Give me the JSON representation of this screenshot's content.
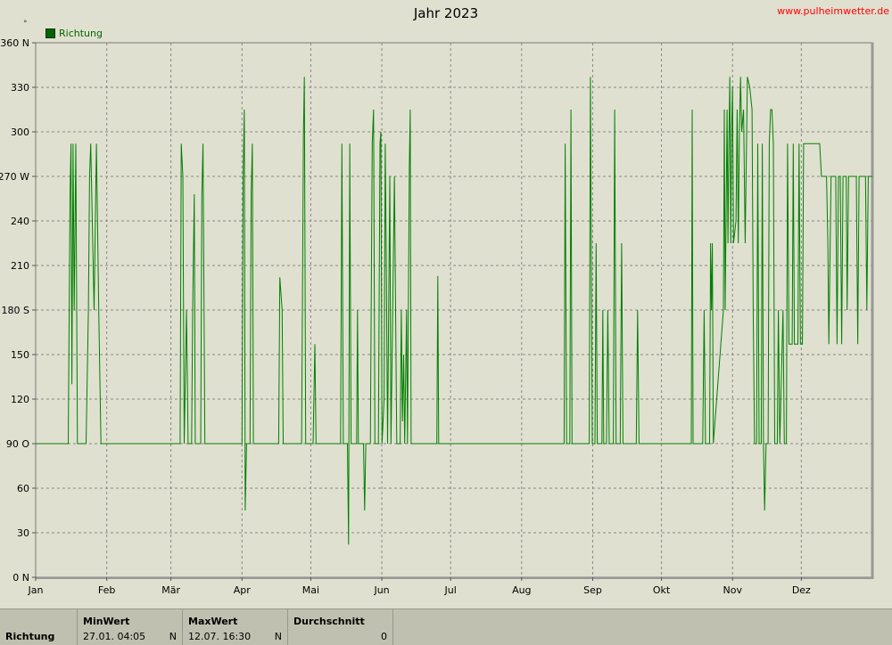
{
  "header": {
    "title": "Jahr 2023",
    "website": "www.pulheimwetter.de",
    "degree_mark": "°"
  },
  "legend": {
    "label": "Richtung",
    "color": "#006600"
  },
  "colors": {
    "background": "#e0e0d0",
    "grid": "#888888",
    "line": "#008000",
    "axis_text": "#000000",
    "site_text": "#ff0000"
  },
  "stats": {
    "row_label": "Richtung",
    "min": {
      "header": "MinWert",
      "value": "27.01.  04:05",
      "dir": "N"
    },
    "max": {
      "header": "MaxWert",
      "value": "12.07.  16:30",
      "dir": "N"
    },
    "avg": {
      "header": "Durchschnitt",
      "value": "0"
    }
  },
  "chart_data": {
    "type": "line",
    "title": "Jahr 2023",
    "ylim": [
      0,
      360
    ],
    "xlim": [
      0,
      365
    ],
    "yticks": [
      {
        "v": 0,
        "label": "0   N"
      },
      {
        "v": 30,
        "label": "30"
      },
      {
        "v": 60,
        "label": "60"
      },
      {
        "v": 90,
        "label": "90   O"
      },
      {
        "v": 120,
        "label": "120"
      },
      {
        "v": 150,
        "label": "150"
      },
      {
        "v": 180,
        "label": "180 S"
      },
      {
        "v": 210,
        "label": "210"
      },
      {
        "v": 240,
        "label": "240"
      },
      {
        "v": 270,
        "label": "270 W"
      },
      {
        "v": 300,
        "label": "300"
      },
      {
        "v": 330,
        "label": "330"
      },
      {
        "v": 360,
        "label": "360 N"
      }
    ],
    "xticks": [
      {
        "d": 0,
        "label": "Jan"
      },
      {
        "d": 31,
        "label": "Feb"
      },
      {
        "d": 59,
        "label": "Mär"
      },
      {
        "d": 90,
        "label": "Apr"
      },
      {
        "d": 120,
        "label": "Mai"
      },
      {
        "d": 151,
        "label": "Jun"
      },
      {
        "d": 181,
        "label": "Jul"
      },
      {
        "d": 212,
        "label": "Aug"
      },
      {
        "d": 243,
        "label": "Sep"
      },
      {
        "d": 273,
        "label": "Okt"
      },
      {
        "d": 304,
        "label": "Nov"
      },
      {
        "d": 334,
        "label": "Dez"
      }
    ],
    "grid": true,
    "series": [
      {
        "name": "Richtung",
        "color": "#008000",
        "points": [
          [
            0,
            90
          ],
          [
            14.2,
            90
          ],
          [
            15,
            258
          ],
          [
            15.4,
            292
          ],
          [
            15.8,
            130
          ],
          [
            16.3,
            292
          ],
          [
            16.8,
            180
          ],
          [
            17.5,
            292
          ],
          [
            18.2,
            90
          ],
          [
            22,
            90
          ],
          [
            23,
            180
          ],
          [
            23.5,
            270
          ],
          [
            24,
            292
          ],
          [
            25.5,
            180
          ],
          [
            26.5,
            292
          ],
          [
            27.5,
            180
          ],
          [
            28.5,
            90
          ],
          [
            59,
            90
          ],
          [
            63,
            90
          ],
          [
            63.5,
            292
          ],
          [
            64.2,
            270
          ],
          [
            64.8,
            90
          ],
          [
            65.8,
            180
          ],
          [
            66.5,
            90
          ],
          [
            68,
            90
          ],
          [
            68.5,
            180
          ],
          [
            69.2,
            258
          ],
          [
            69.6,
            90
          ],
          [
            72,
            90
          ],
          [
            72.5,
            258
          ],
          [
            73,
            292
          ],
          [
            73.8,
            90
          ],
          [
            90,
            90
          ],
          [
            90.5,
            270
          ],
          [
            91,
            315
          ],
          [
            91.4,
            45
          ],
          [
            92,
            90
          ],
          [
            93.5,
            90
          ],
          [
            94,
            258
          ],
          [
            94.5,
            292
          ],
          [
            95,
            90
          ],
          [
            106,
            90
          ],
          [
            106.5,
            202
          ],
          [
            107.5,
            180
          ],
          [
            108,
            90
          ],
          [
            116,
            90
          ],
          [
            116.8,
            300
          ],
          [
            117.2,
            337
          ],
          [
            117.8,
            90
          ],
          [
            121,
            90
          ],
          [
            121.8,
            157
          ],
          [
            122.3,
            90
          ],
          [
            133,
            90
          ],
          [
            133.6,
            292
          ],
          [
            134.2,
            90
          ],
          [
            136,
            90
          ],
          [
            136.5,
            22
          ],
          [
            137,
            292
          ],
          [
            137.6,
            90
          ],
          [
            140,
            90
          ],
          [
            140.4,
            180
          ],
          [
            140.8,
            90
          ],
          [
            143,
            90
          ],
          [
            143.5,
            45
          ],
          [
            144,
            90
          ],
          [
            146,
            90
          ],
          [
            146.8,
            292
          ],
          [
            147.4,
            315
          ],
          [
            148,
            90
          ],
          [
            149.5,
            90
          ],
          [
            150.2,
            292
          ],
          [
            150.6,
            300
          ],
          [
            151.1,
            90
          ],
          [
            152,
            120
          ],
          [
            152.5,
            292
          ],
          [
            153,
            203
          ],
          [
            153.5,
            90
          ],
          [
            154.5,
            270
          ],
          [
            155,
            90
          ],
          [
            156.5,
            270
          ],
          [
            157,
            180
          ],
          [
            157.5,
            90
          ],
          [
            159,
            90
          ],
          [
            159.5,
            180
          ],
          [
            160,
            105
          ],
          [
            160.5,
            150
          ],
          [
            161,
            90
          ],
          [
            161.8,
            180
          ],
          [
            162.2,
            90
          ],
          [
            163,
            277
          ],
          [
            163.4,
            315
          ],
          [
            163.8,
            90
          ],
          [
            174,
            90
          ],
          [
            175,
            90
          ],
          [
            175.4,
            203
          ],
          [
            175.8,
            90
          ],
          [
            229,
            90
          ],
          [
            230.5,
            90
          ],
          [
            231,
            292
          ],
          [
            231.6,
            90
          ],
          [
            233,
            90
          ],
          [
            233.5,
            315
          ],
          [
            234,
            90
          ],
          [
            240,
            90
          ],
          [
            241.5,
            90
          ],
          [
            242,
            337
          ],
          [
            242.8,
            90
          ],
          [
            244,
            90
          ],
          [
            244.5,
            225
          ],
          [
            245,
            90
          ],
          [
            246,
            90
          ],
          [
            247,
            90
          ],
          [
            247.4,
            180
          ],
          [
            247.8,
            90
          ],
          [
            249,
            90
          ],
          [
            249.6,
            180
          ],
          [
            250.2,
            90
          ],
          [
            252,
            90
          ],
          [
            252.6,
            315
          ],
          [
            253.2,
            90
          ],
          [
            255,
            90
          ],
          [
            255.6,
            225
          ],
          [
            256.2,
            90
          ],
          [
            262,
            90
          ],
          [
            262.6,
            180
          ],
          [
            263.2,
            90
          ],
          [
            273,
            90
          ],
          [
            286,
            90
          ],
          [
            286.4,
            315
          ],
          [
            286.8,
            90
          ],
          [
            291,
            90
          ],
          [
            291.6,
            180
          ],
          [
            292.2,
            90
          ],
          [
            294,
            90
          ],
          [
            294.4,
            225
          ],
          [
            294.8,
            180
          ],
          [
            295.2,
            225
          ],
          [
            295.6,
            90
          ],
          [
            300,
            180
          ],
          [
            300.4,
            315
          ],
          [
            300.8,
            180
          ],
          [
            301.6,
            315
          ],
          [
            302,
            225
          ],
          [
            302.4,
            292
          ],
          [
            302.8,
            337
          ],
          [
            303.2,
            225
          ],
          [
            303.6,
            300
          ],
          [
            304,
            330
          ],
          [
            304.4,
            225
          ],
          [
            305.5,
            240
          ],
          [
            306,
            315
          ],
          [
            306.5,
            225
          ],
          [
            307,
            300
          ],
          [
            307.5,
            337
          ],
          [
            308,
            300
          ],
          [
            308.8,
            315
          ],
          [
            309.5,
            225
          ],
          [
            310.5,
            337
          ],
          [
            311.5,
            330
          ],
          [
            312.5,
            315
          ],
          [
            313,
            180
          ],
          [
            313.6,
            90
          ],
          [
            314.5,
            90
          ],
          [
            315,
            292
          ],
          [
            315.6,
            90
          ],
          [
            316.5,
            90
          ],
          [
            317,
            292
          ],
          [
            317.5,
            90
          ],
          [
            318,
            45
          ],
          [
            318.6,
            90
          ],
          [
            319.5,
            90
          ],
          [
            320,
            292
          ],
          [
            320.6,
            315
          ],
          [
            321.2,
            315
          ],
          [
            321.8,
            292
          ],
          [
            322.4,
            90
          ],
          [
            323.5,
            90
          ],
          [
            324,
            180
          ],
          [
            324.6,
            90
          ],
          [
            326,
            180
          ],
          [
            326.6,
            90
          ],
          [
            327.5,
            90
          ],
          [
            328,
            292
          ],
          [
            328.6,
            157
          ],
          [
            330,
            157
          ],
          [
            330.5,
            292
          ],
          [
            331,
            157
          ],
          [
            332.5,
            157
          ],
          [
            333,
            292
          ],
          [
            333.6,
            157
          ],
          [
            334.5,
            157
          ],
          [
            335,
            292
          ],
          [
            336,
            292
          ],
          [
            337,
            292
          ],
          [
            338,
            292
          ],
          [
            339,
            292
          ],
          [
            340,
            292
          ],
          [
            341,
            292
          ],
          [
            342,
            292
          ],
          [
            342.8,
            270
          ],
          [
            344,
            270
          ],
          [
            345,
            270
          ],
          [
            345.6,
            225
          ],
          [
            346,
            157
          ],
          [
            346.6,
            225
          ],
          [
            347,
            270
          ],
          [
            348,
            270
          ],
          [
            349,
            270
          ],
          [
            349.6,
            157
          ],
          [
            350.2,
            270
          ],
          [
            351,
            270
          ],
          [
            351.6,
            157
          ],
          [
            352.2,
            270
          ],
          [
            353,
            270
          ],
          [
            353.6,
            270
          ],
          [
            354,
            180
          ],
          [
            354.6,
            270
          ],
          [
            355.2,
            270
          ],
          [
            356,
            270
          ],
          [
            357,
            270
          ],
          [
            358,
            270
          ],
          [
            358.6,
            157
          ],
          [
            359.2,
            270
          ],
          [
            360,
            270
          ],
          [
            361,
            270
          ],
          [
            362,
            270
          ],
          [
            362.6,
            180
          ],
          [
            363.2,
            270
          ],
          [
            364,
            270
          ],
          [
            365,
            270
          ]
        ]
      }
    ]
  }
}
